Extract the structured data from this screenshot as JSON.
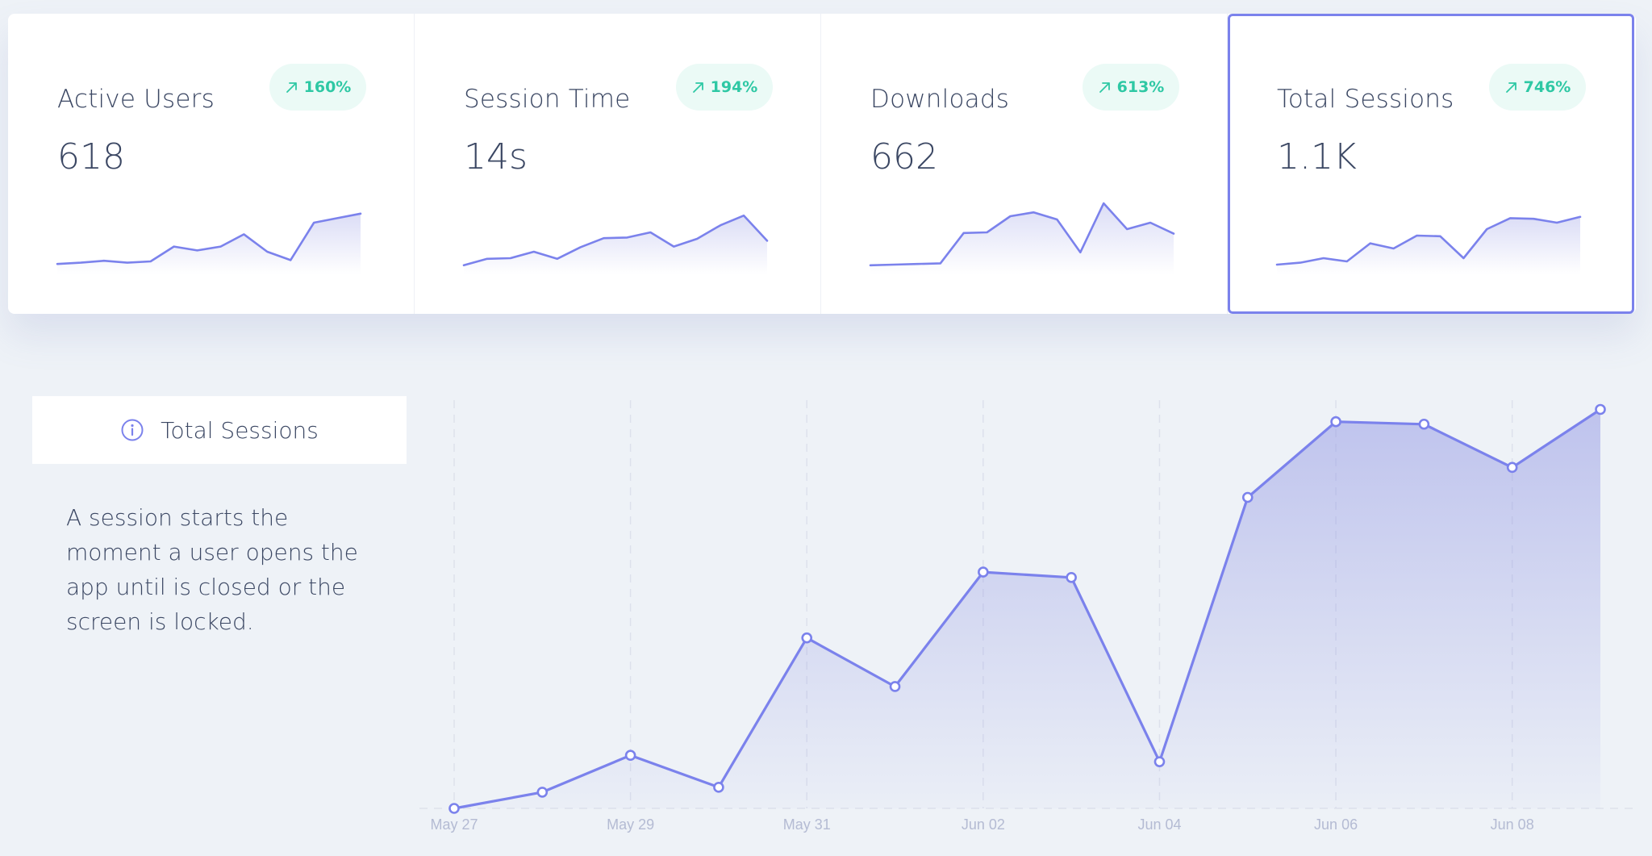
{
  "kpis": [
    {
      "title": "Active Users",
      "value": "618",
      "change": "160%",
      "selected": false,
      "sparkline": [
        6,
        8,
        11,
        8,
        10,
        33,
        27,
        33,
        52,
        25,
        12,
        70,
        77,
        84
      ]
    },
    {
      "title": "Session Time",
      "value": "14s",
      "change": "194%",
      "selected": false,
      "sparkline": [
        4,
        14,
        15,
        25,
        14,
        32,
        46,
        47,
        55,
        33,
        45,
        66,
        81,
        42
      ]
    },
    {
      "title": "Downloads",
      "value": "662",
      "change": "613%",
      "selected": false,
      "sparkline": [
        4,
        5,
        6,
        7,
        54,
        55,
        80,
        86,
        75,
        24,
        100,
        60,
        70,
        53
      ]
    },
    {
      "title": "Total Sessions",
      "value": "1.1K",
      "change": "746%",
      "selected": true,
      "sparkline": [
        5,
        8,
        15,
        10,
        38,
        30,
        50,
        49,
        15,
        60,
        77,
        76,
        70,
        79
      ]
    }
  ],
  "info": {
    "title": "Total Sessions",
    "description": "A session starts the moment a user opens the app until is closed or the screen is locked."
  },
  "colors": {
    "accent": "#7b82ec",
    "positive": "#2ec8a4",
    "positive_bg": "#ebfaf6",
    "text": "#3b4763",
    "background": "#eef2f7"
  },
  "icons": {
    "trend": "arrow-up-right-icon",
    "info": "info-circle-icon"
  },
  "chart_data": {
    "type": "area",
    "x": [
      "May 27",
      "May 28",
      "May 29",
      "May 30",
      "May 31",
      "Jun 01",
      "Jun 02",
      "Jun 03",
      "Jun 04",
      "Jun 05",
      "Jun 06",
      "Jun 07",
      "Jun 08",
      "Jun 09"
    ],
    "x_tick_labels": [
      "May 27",
      "May 29",
      "May 31",
      "Jun 02",
      "Jun 04",
      "Jun 06",
      "Jun 08"
    ],
    "series": [
      {
        "values": [
          0,
          33,
          108,
          43,
          347,
          248,
          481,
          470,
          95,
          633,
          787,
          782,
          694,
          812
        ]
      }
    ],
    "ylim": [
      0,
      1000
    ],
    "grid": "vertical dashed",
    "legend": "none"
  }
}
